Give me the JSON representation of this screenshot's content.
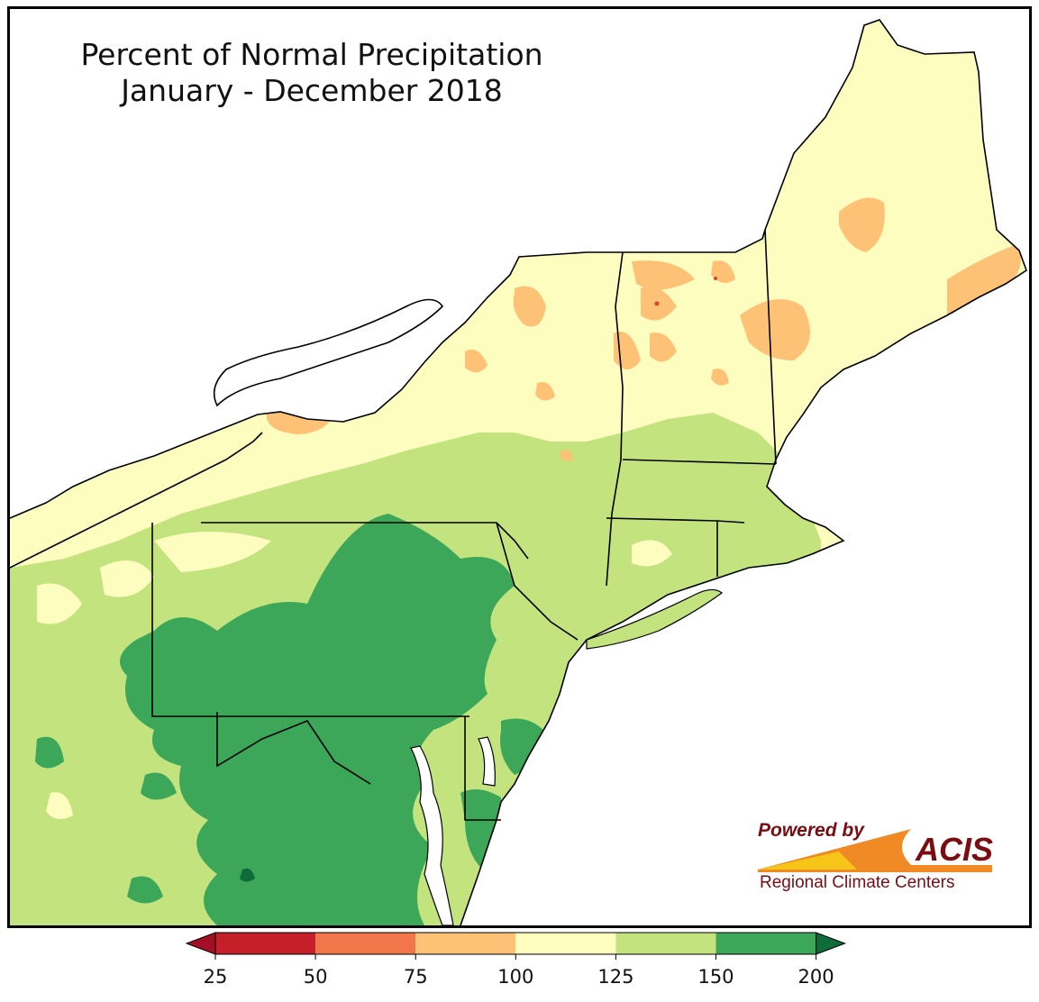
{
  "title": {
    "line1": "Percent of Normal Precipitation",
    "line2": "January - December 2018"
  },
  "logo": {
    "powered": "Powered by",
    "acis": "ACIS",
    "rcc": "Regional Climate Centers"
  },
  "legend": {
    "ticks": [
      "25",
      "50",
      "75",
      "100",
      "125",
      "150",
      "200"
    ],
    "bins": [
      {
        "min": 25,
        "max": 50,
        "color": "#c51f2a"
      },
      {
        "min": 50,
        "max": 75,
        "color": "#f1774a"
      },
      {
        "min": 75,
        "max": 100,
        "color": "#fdc276"
      },
      {
        "min": 100,
        "max": 125,
        "color": "#fefdc0"
      },
      {
        "min": 125,
        "max": 150,
        "color": "#c3e37f"
      },
      {
        "min": 150,
        "max": 200,
        "color": "#3ca659"
      }
    ],
    "under_color": "#a50f26",
    "over_color": "#0e6b3a"
  },
  "colors": {
    "land_base": "#fefdc0",
    "border": "#000000",
    "county_lines": "#b0b0a0"
  }
}
